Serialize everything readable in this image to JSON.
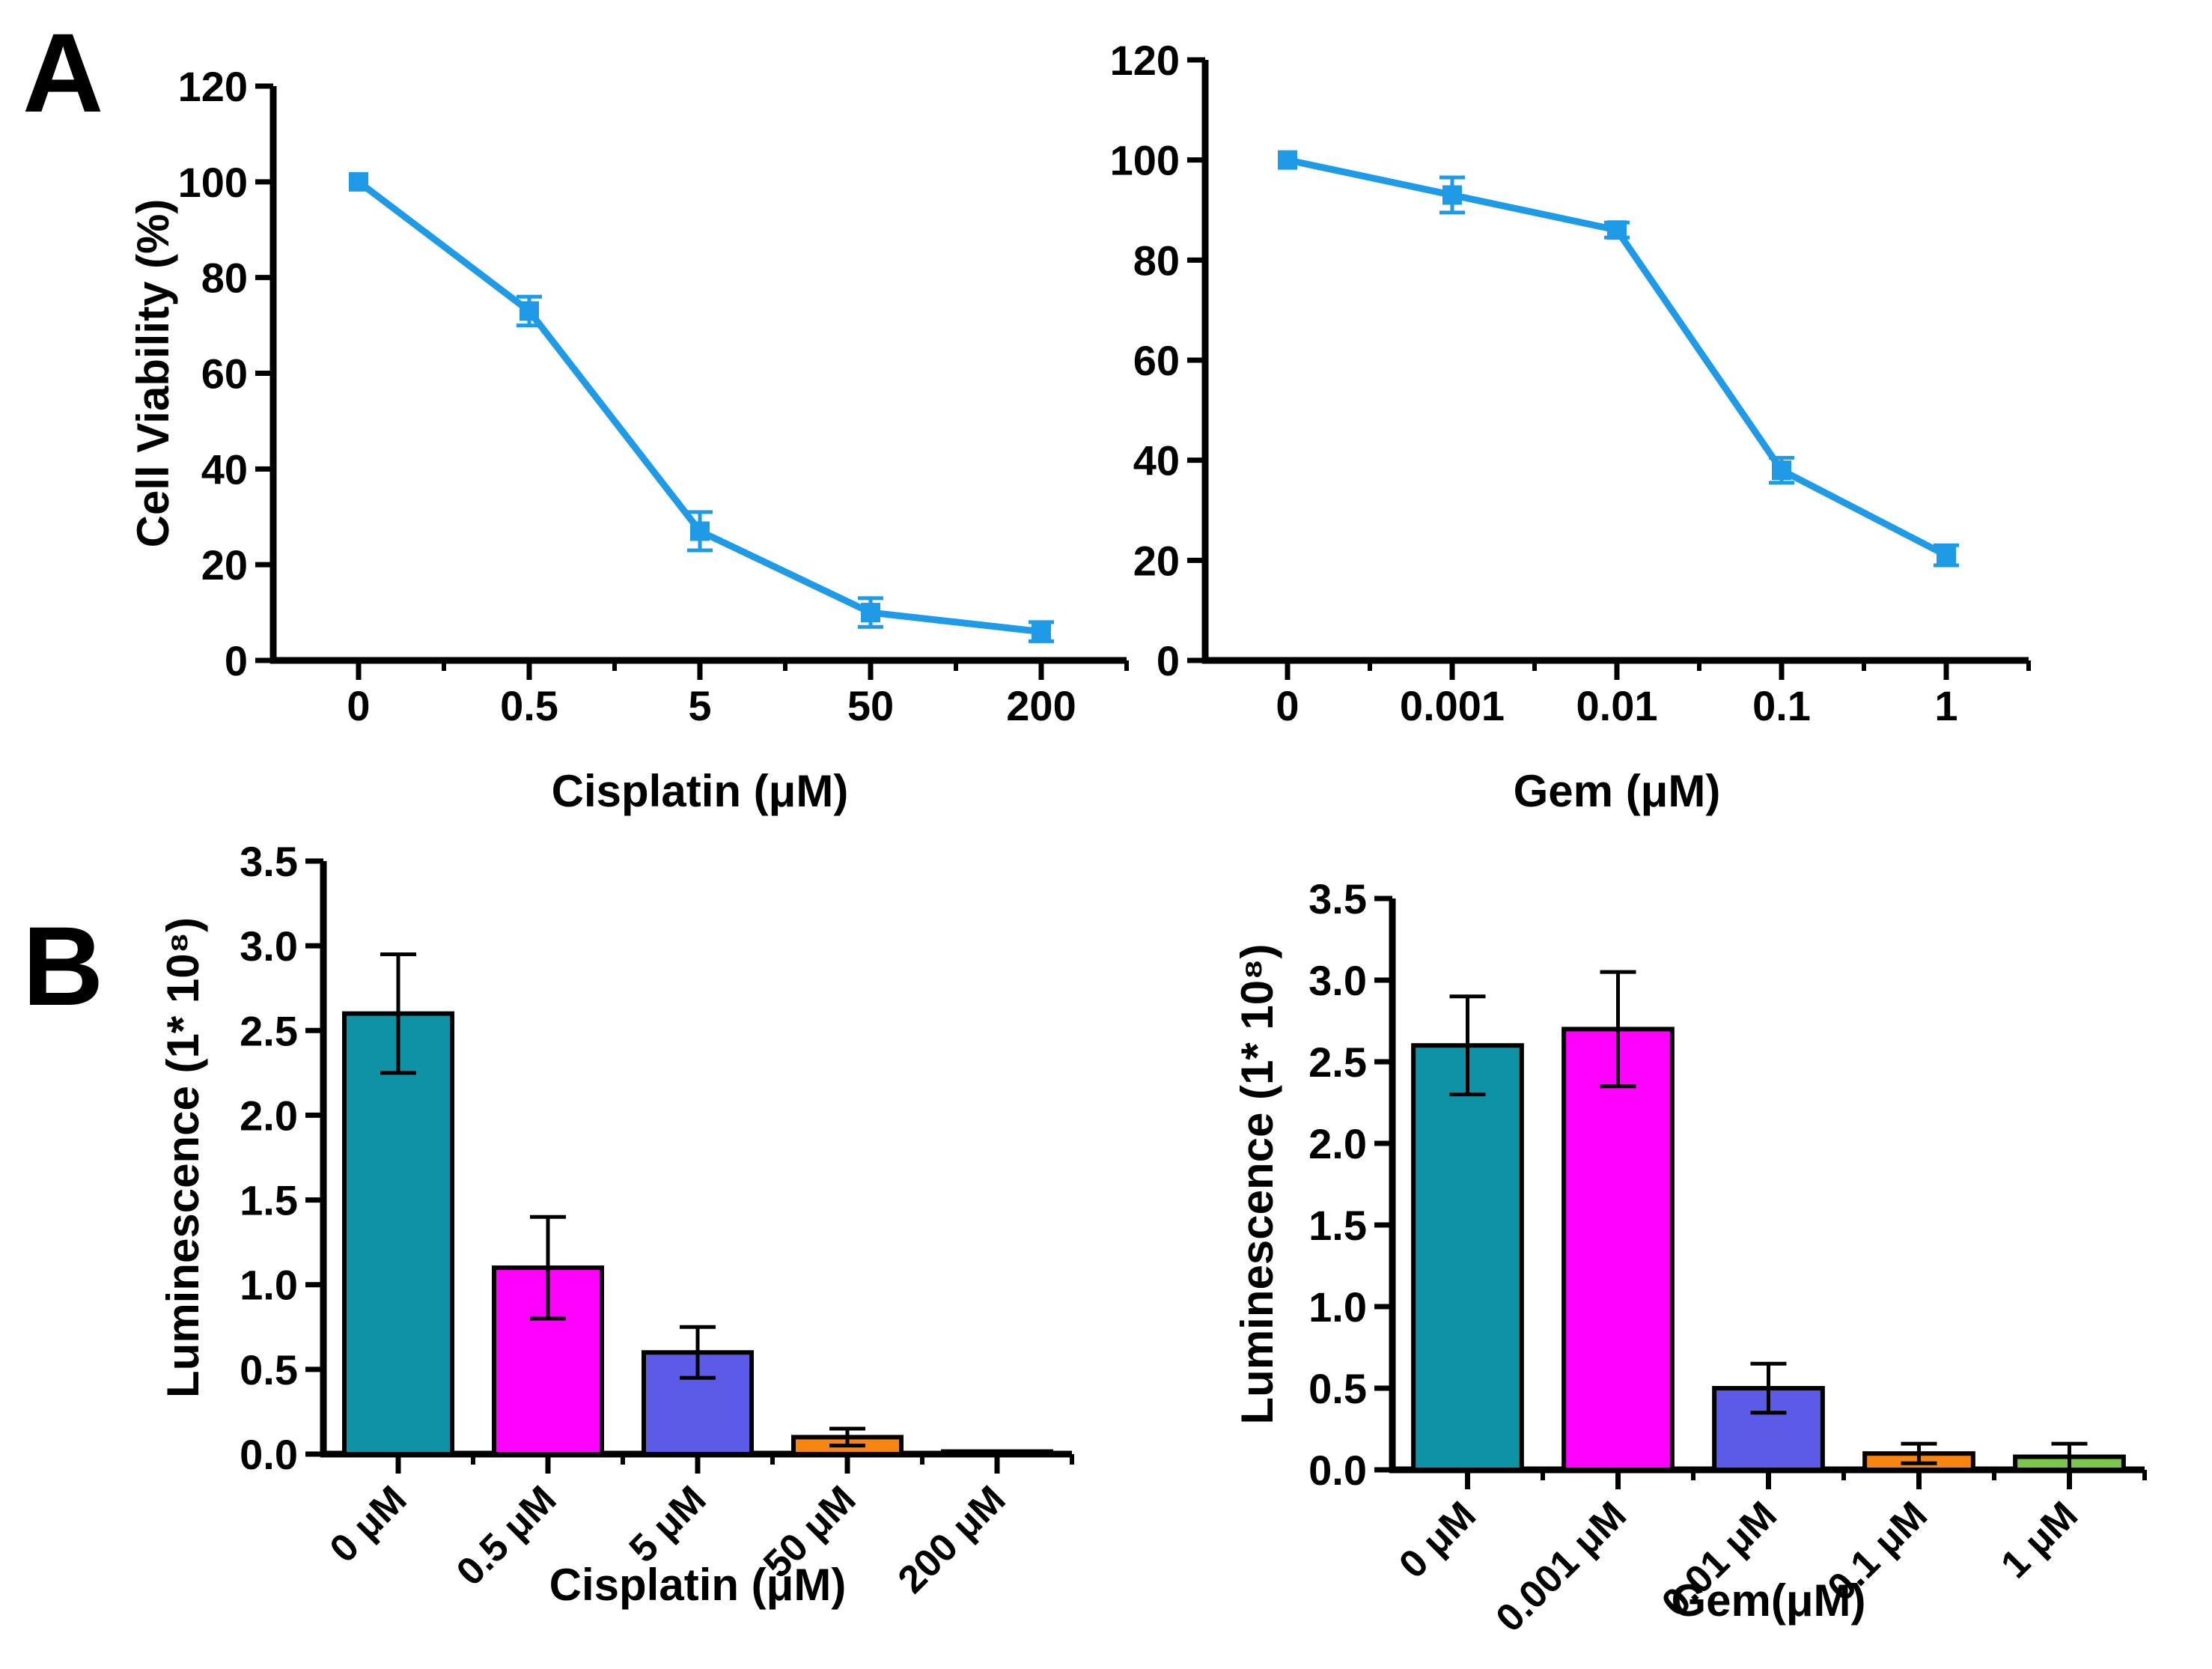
{
  "panels": [
    {
      "label": "A"
    },
    {
      "label": "B"
    }
  ],
  "chart_data": [
    {
      "type": "line",
      "name": "cisplatin-viability",
      "panel": "A",
      "categories": [
        "0",
        "0.5",
        "5",
        "50",
        "200"
      ],
      "values": [
        100,
        73,
        27,
        10,
        6
      ],
      "errors": [
        0,
        3,
        4,
        3,
        2
      ],
      "line_color": "#1E9AE6",
      "marker": "square",
      "title": "",
      "xlabel": "Cisplatin (μM)",
      "ylabel": "Cell Viability (%)",
      "ylim": [
        0,
        120
      ],
      "ytick_step": 20,
      "ytick_decimals": 0,
      "grid": false,
      "legend": "none"
    },
    {
      "type": "line",
      "name": "gem-viability",
      "panel": "A",
      "categories": [
        "0",
        "0.001",
        "0.01",
        "0.1",
        "1"
      ],
      "values": [
        100,
        93,
        86,
        38,
        21
      ],
      "errors": [
        0,
        3.5,
        1.5,
        2.5,
        2
      ],
      "line_color": "#1E9AE6",
      "marker": "square",
      "title": "",
      "xlabel": "Gem (μM)",
      "ylabel": "",
      "ylim": [
        0,
        120
      ],
      "ytick_step": 20,
      "ytick_decimals": 0,
      "grid": false,
      "legend": "none"
    },
    {
      "type": "bar",
      "name": "cisplatin-luminescence",
      "panel": "B",
      "categories": [
        "0 μM",
        "0.5 μM",
        "5 μM",
        "50 μM",
        "200 μM"
      ],
      "values": [
        2.6,
        1.1,
        0.6,
        0.1,
        0.015
      ],
      "errors": [
        0.35,
        0.3,
        0.15,
        0.05,
        0
      ],
      "bar_colors": [
        "#0E93A6",
        "#FF00FE",
        "#5B5BE8",
        "#F98511",
        "#111111"
      ],
      "title": "",
      "xlabel": "Cisplatin (μM)",
      "ylabel": "Luminescence (1* 10⁸)",
      "ylim": [
        0,
        3.5
      ],
      "ytick_step": 0.5,
      "ytick_decimals": 1,
      "grid": false,
      "legend": "none"
    },
    {
      "type": "bar",
      "name": "gem-luminescence",
      "panel": "B",
      "categories": [
        "0 μM",
        "0.001 μM",
        "0.01 μM",
        "0.1 μM",
        "1 μM"
      ],
      "values": [
        2.6,
        2.7,
        0.5,
        0.1,
        0.08
      ],
      "errors": [
        0.3,
        0.35,
        0.15,
        0.06,
        0.08
      ],
      "bar_colors": [
        "#0E93A6",
        "#FF00FE",
        "#5B5BE8",
        "#F98511",
        "#7CC64C"
      ],
      "title": "",
      "xlabel": "Gem(μM)",
      "ylabel": "Luminescence (1* 10⁸)",
      "ylim": [
        0,
        3.5
      ],
      "ytick_step": 0.5,
      "ytick_decimals": 1,
      "grid": false,
      "legend": "none"
    }
  ]
}
